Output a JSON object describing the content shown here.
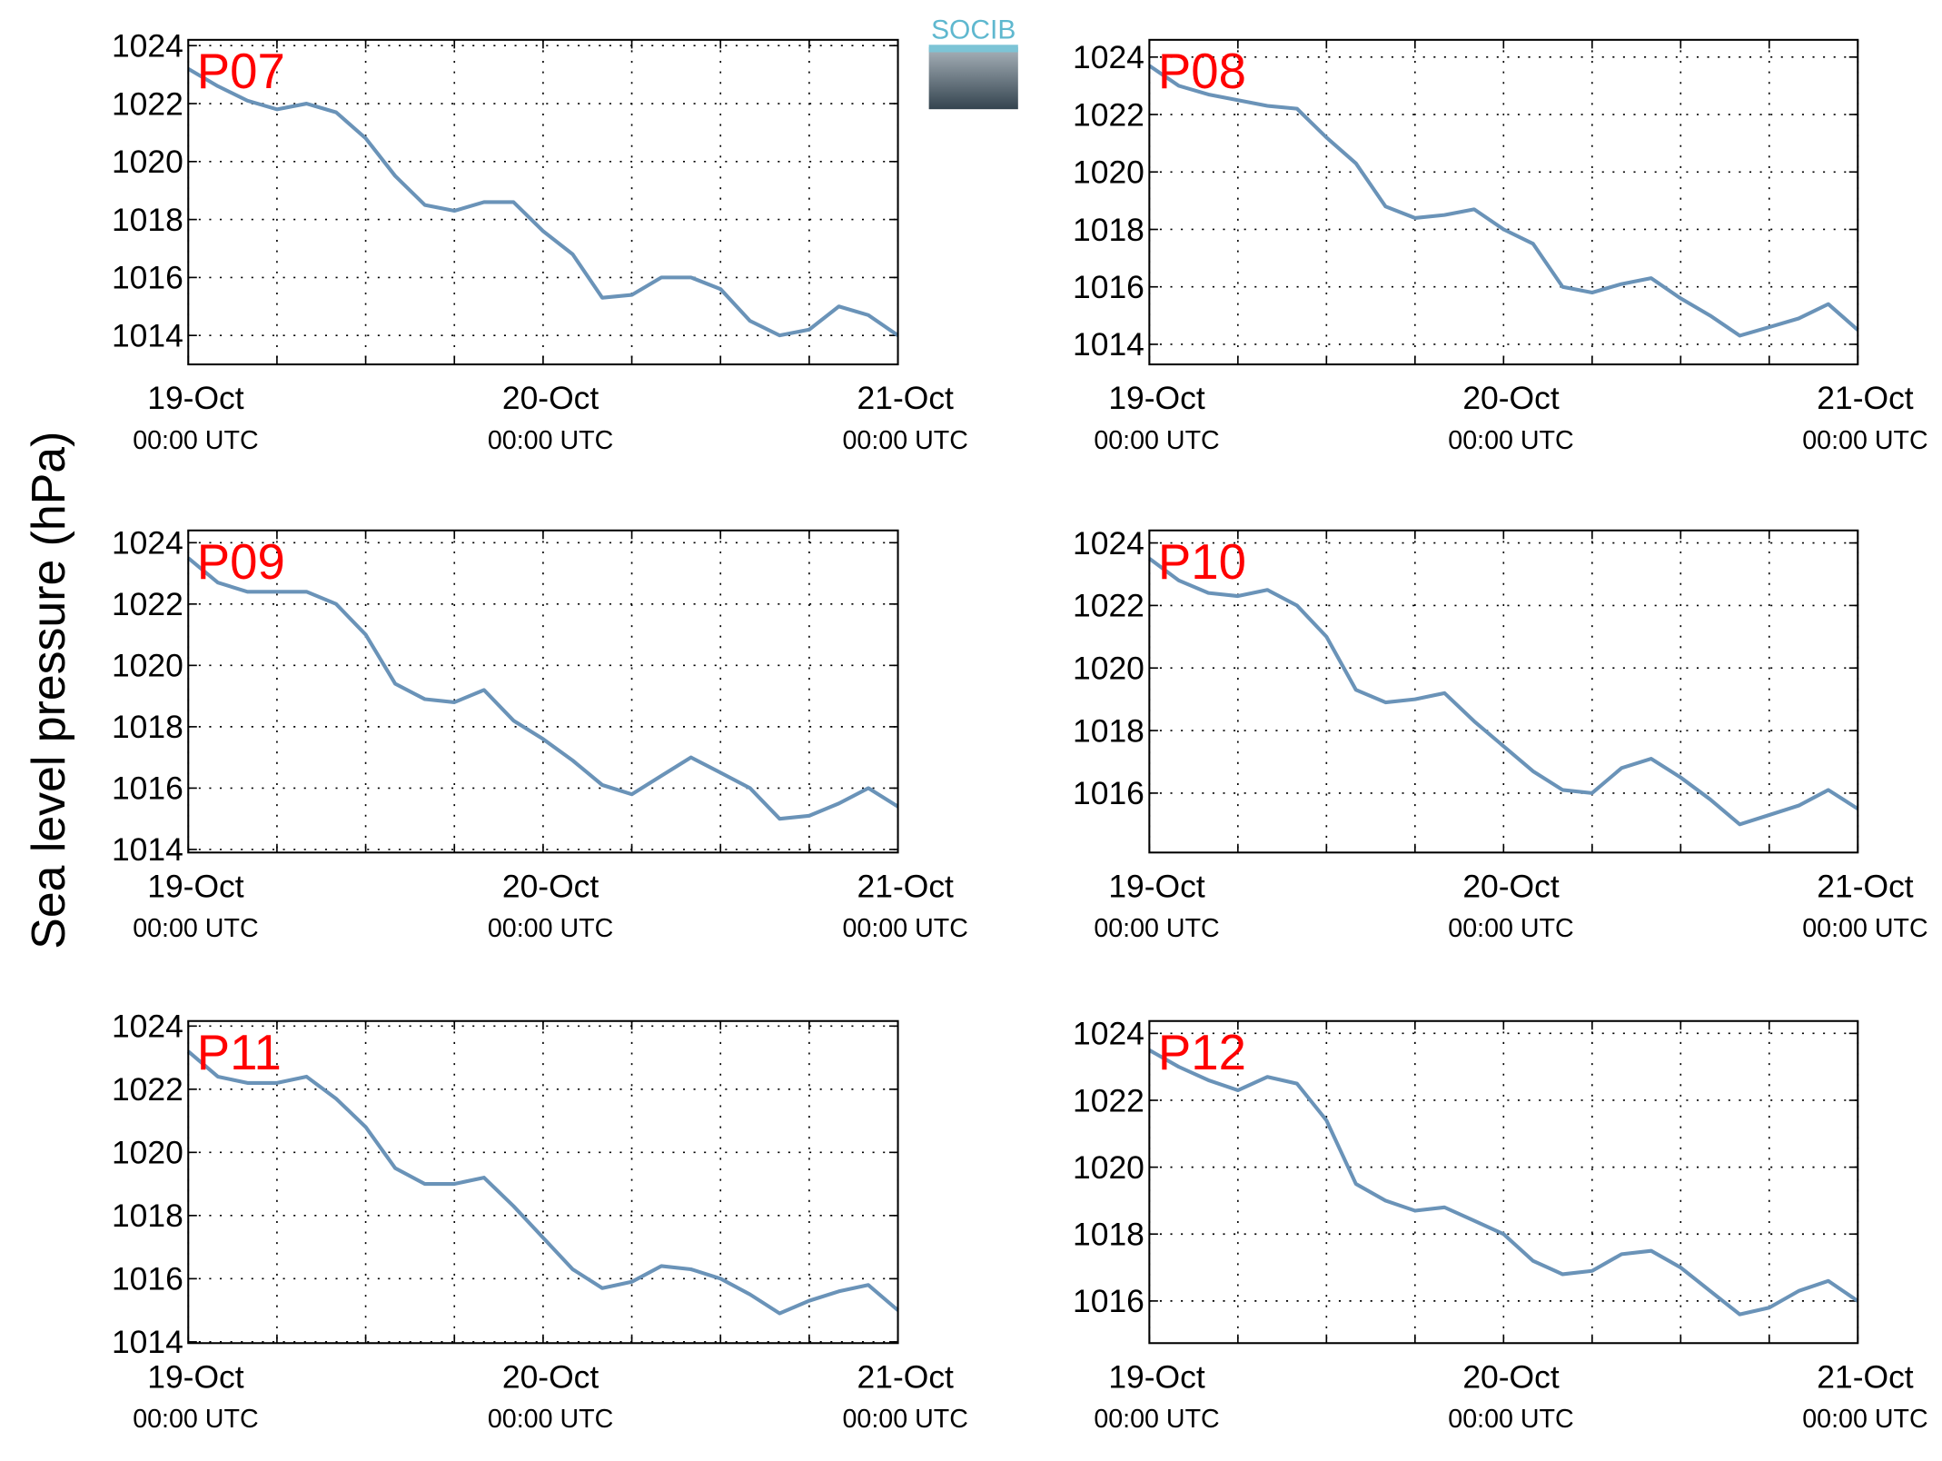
{
  "ylabel": "Sea level pressure (hPa)",
  "logo": "SOCIB",
  "chart_data": [
    {
      "type": "line",
      "title": "P07",
      "color": "#6a93b8",
      "grid": true,
      "xlim": [
        0,
        48
      ],
      "ylim": [
        1013,
        1024.2
      ],
      "yticks": [
        1014,
        1016,
        1018,
        1020,
        1022,
        1024
      ],
      "xticks": [
        {
          "value": 0,
          "label": [
            "19-Oct",
            "00:00 UTC"
          ]
        },
        6,
        12,
        18,
        {
          "value": 24,
          "label": [
            "20-Oct",
            "00:00 UTC"
          ]
        },
        30,
        36,
        42,
        {
          "value": 48,
          "label": [
            "21-Oct",
            "00:00 UTC"
          ]
        }
      ],
      "x": [
        0,
        2,
        4,
        6,
        8,
        10,
        12,
        14,
        16,
        18,
        20,
        22,
        24,
        26,
        28,
        30,
        32,
        34,
        36,
        38,
        40,
        42,
        44,
        46,
        48
      ],
      "values": [
        1023.2,
        1022.6,
        1022.1,
        1021.8,
        1022.0,
        1021.7,
        1020.8,
        1019.5,
        1018.5,
        1018.3,
        1018.6,
        1018.6,
        1017.6,
        1016.8,
        1015.3,
        1015.4,
        1016.0,
        1016.0,
        1015.6,
        1014.5,
        1014.0,
        1014.2,
        1015.0,
        1014.7,
        1014.0
      ]
    },
    {
      "type": "line",
      "title": "P08",
      "color": "#6a93b8",
      "grid": true,
      "xlim": [
        0,
        48
      ],
      "ylim": [
        1013.3,
        1024.6
      ],
      "yticks": [
        1014,
        1016,
        1018,
        1020,
        1022,
        1024
      ],
      "xticks": [
        {
          "value": 0,
          "label": [
            "19-Oct",
            "00:00 UTC"
          ]
        },
        6,
        12,
        18,
        {
          "value": 24,
          "label": [
            "20-Oct",
            "00:00 UTC"
          ]
        },
        30,
        36,
        42,
        {
          "value": 48,
          "label": [
            "21-Oct",
            "00:00 UTC"
          ]
        }
      ],
      "x": [
        0,
        2,
        4,
        6,
        8,
        10,
        12,
        14,
        16,
        18,
        20,
        22,
        24,
        26,
        28,
        30,
        32,
        34,
        36,
        38,
        40,
        42,
        44,
        46,
        48
      ],
      "values": [
        1023.7,
        1023.0,
        1022.7,
        1022.5,
        1022.3,
        1022.2,
        1021.2,
        1020.3,
        1018.8,
        1018.4,
        1018.5,
        1018.7,
        1018.0,
        1017.5,
        1016.0,
        1015.8,
        1016.1,
        1016.3,
        1015.6,
        1015.0,
        1014.3,
        1014.6,
        1014.9,
        1015.4,
        1014.5
      ]
    },
    {
      "type": "line",
      "title": "P09",
      "color": "#6a93b8",
      "grid": true,
      "xlim": [
        0,
        48
      ],
      "ylim": [
        1013.9,
        1024.4
      ],
      "yticks": [
        1014,
        1016,
        1018,
        1020,
        1022,
        1024
      ],
      "xticks": [
        {
          "value": 0,
          "label": [
            "19-Oct",
            "00:00 UTC"
          ]
        },
        6,
        12,
        18,
        {
          "value": 24,
          "label": [
            "20-Oct",
            "00:00 UTC"
          ]
        },
        30,
        36,
        42,
        {
          "value": 48,
          "label": [
            "21-Oct",
            "00:00 UTC"
          ]
        }
      ],
      "x": [
        0,
        2,
        4,
        6,
        8,
        10,
        12,
        14,
        16,
        18,
        20,
        22,
        24,
        26,
        28,
        30,
        32,
        34,
        36,
        38,
        40,
        42,
        44,
        46,
        48
      ],
      "values": [
        1023.5,
        1022.7,
        1022.4,
        1022.4,
        1022.4,
        1022.0,
        1021.0,
        1019.4,
        1018.9,
        1018.8,
        1019.2,
        1018.2,
        1017.6,
        1016.9,
        1016.1,
        1015.8,
        1016.4,
        1017.0,
        1016.5,
        1016.0,
        1015.0,
        1015.1,
        1015.5,
        1016.0,
        1015.4
      ]
    },
    {
      "type": "line",
      "title": "P10",
      "color": "#6a93b8",
      "grid": true,
      "xlim": [
        0,
        48
      ],
      "ylim": [
        1014.1,
        1024.4
      ],
      "yticks": [
        1016,
        1018,
        1020,
        1022,
        1024
      ],
      "xticks": [
        {
          "value": 0,
          "label": [
            "19-Oct",
            "00:00 UTC"
          ]
        },
        6,
        12,
        18,
        {
          "value": 24,
          "label": [
            "20-Oct",
            "00:00 UTC"
          ]
        },
        30,
        36,
        42,
        {
          "value": 48,
          "label": [
            "21-Oct",
            "00:00 UTC"
          ]
        }
      ],
      "x": [
        0,
        2,
        4,
        6,
        8,
        10,
        12,
        14,
        16,
        18,
        20,
        22,
        24,
        26,
        28,
        30,
        32,
        34,
        36,
        38,
        40,
        42,
        44,
        46,
        48
      ],
      "values": [
        1023.5,
        1022.8,
        1022.4,
        1022.3,
        1022.5,
        1022.0,
        1021.0,
        1019.3,
        1018.9,
        1019.0,
        1019.2,
        1018.3,
        1017.5,
        1016.7,
        1016.1,
        1016.0,
        1016.8,
        1017.1,
        1016.5,
        1015.8,
        1015.0,
        1015.3,
        1015.6,
        1016.1,
        1015.5
      ]
    },
    {
      "type": "line",
      "title": "P11",
      "color": "#6a93b8",
      "grid": true,
      "xlim": [
        0,
        48
      ],
      "ylim": [
        1013.96,
        1024.16
      ],
      "yticks": [
        1014,
        1016,
        1018,
        1020,
        1022,
        1024
      ],
      "xticks": [
        {
          "value": 0,
          "label": [
            "19-Oct",
            "00:00 UTC"
          ]
        },
        6,
        12,
        18,
        {
          "value": 24,
          "label": [
            "20-Oct",
            "00:00 UTC"
          ]
        },
        30,
        36,
        42,
        {
          "value": 48,
          "label": [
            "21-Oct",
            "00:00 UTC"
          ]
        }
      ],
      "x": [
        0,
        2,
        4,
        6,
        8,
        10,
        12,
        14,
        16,
        18,
        20,
        22,
        24,
        26,
        28,
        30,
        32,
        34,
        36,
        38,
        40,
        42,
        44,
        46,
        48
      ],
      "values": [
        1023.2,
        1022.4,
        1022.2,
        1022.2,
        1022.4,
        1021.7,
        1020.8,
        1019.5,
        1019.0,
        1019.0,
        1019.2,
        1018.3,
        1017.3,
        1016.3,
        1015.7,
        1015.9,
        1016.4,
        1016.3,
        1016.0,
        1015.5,
        1014.9,
        1015.3,
        1015.6,
        1015.8,
        1015.0
      ]
    },
    {
      "type": "line",
      "title": "P12",
      "color": "#6a93b8",
      "grid": true,
      "xlim": [
        0,
        48
      ],
      "ylim": [
        1014.74,
        1024.37
      ],
      "yticks": [
        1016,
        1018,
        1020,
        1022,
        1024
      ],
      "xticks": [
        {
          "value": 0,
          "label": [
            "19-Oct",
            "00:00 UTC"
          ]
        },
        6,
        12,
        18,
        {
          "value": 24,
          "label": [
            "20-Oct",
            "00:00 UTC"
          ]
        },
        30,
        36,
        42,
        {
          "value": 48,
          "label": [
            "21-Oct",
            "00:00 UTC"
          ]
        }
      ],
      "x": [
        0,
        2,
        4,
        6,
        8,
        10,
        12,
        14,
        16,
        18,
        20,
        22,
        24,
        26,
        28,
        30,
        32,
        34,
        36,
        38,
        40,
        42,
        44,
        46,
        48
      ],
      "values": [
        1023.5,
        1023.0,
        1022.6,
        1022.3,
        1022.7,
        1022.5,
        1021.4,
        1019.5,
        1019.0,
        1018.7,
        1018.8,
        1018.4,
        1018.0,
        1017.2,
        1016.8,
        1016.9,
        1017.4,
        1017.5,
        1017.0,
        1016.3,
        1015.6,
        1015.8,
        1016.3,
        1016.6,
        1016.0
      ]
    }
  ]
}
